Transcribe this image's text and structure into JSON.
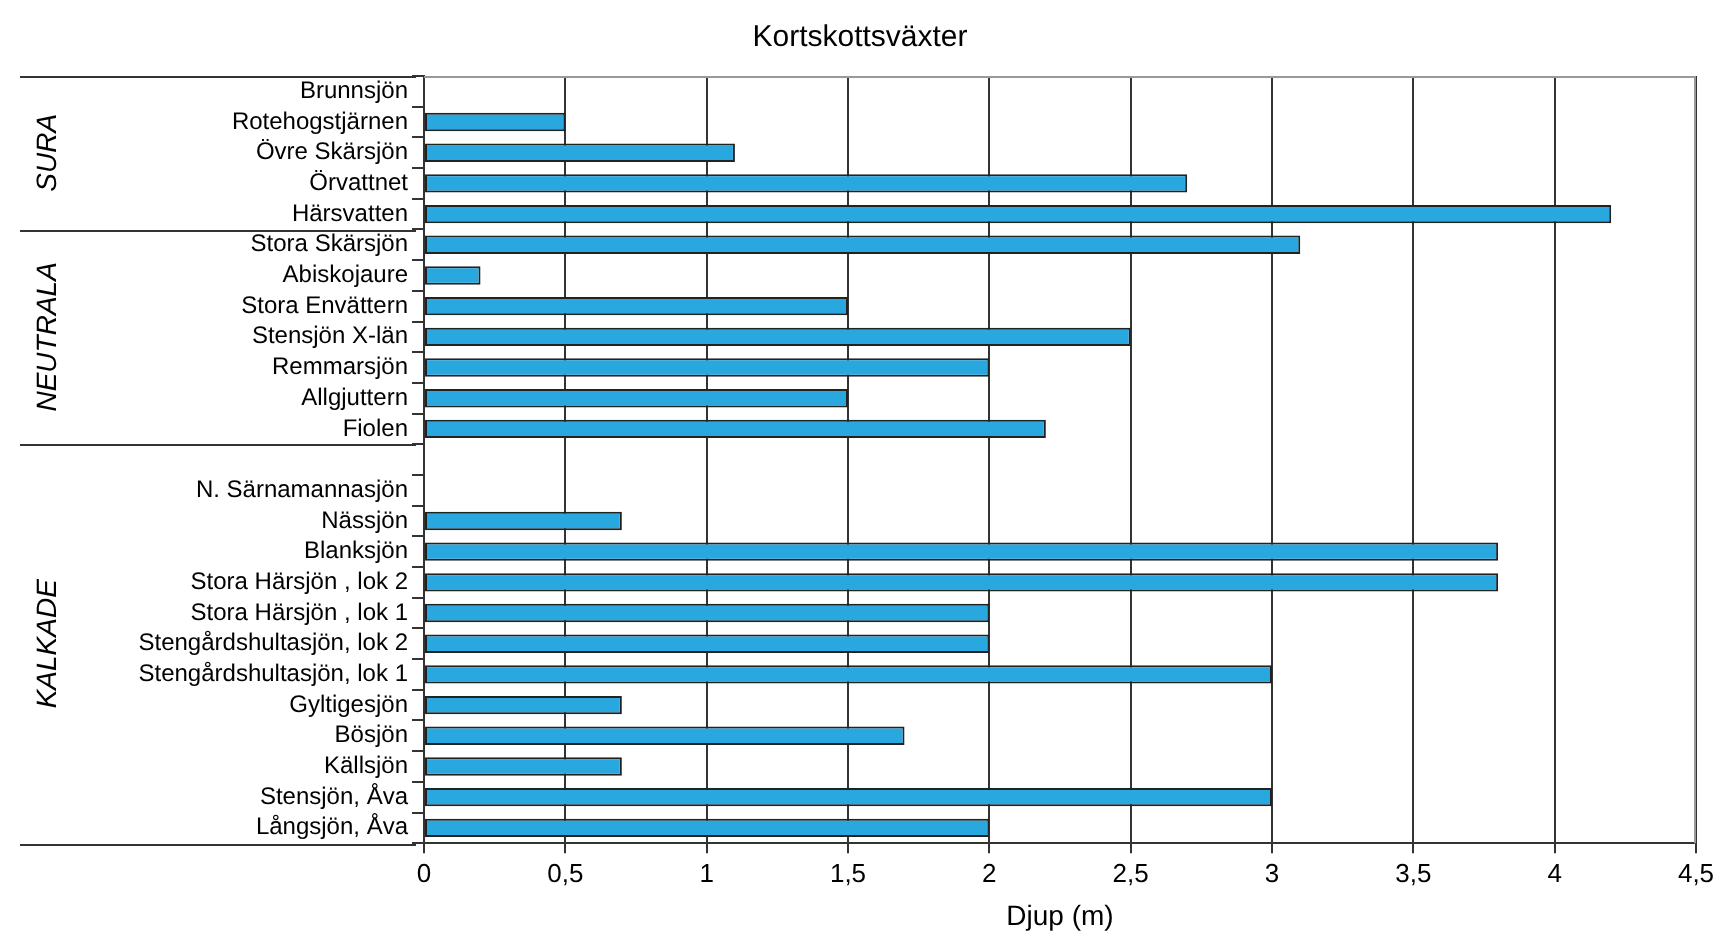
{
  "chart_data": {
    "type": "bar",
    "orientation": "horizontal",
    "title": "Kortskottsväxter",
    "xlabel": "Djup (m)",
    "categories": [
      "Brunnsjön",
      "Rotehogstjärnen",
      "Övre Skärsjön",
      "Örvattnet",
      "Härsvatten",
      "Stora Skärsjön",
      "Abiskojaure",
      "Stora Envättern",
      "Stensjön X-län",
      "Remmarsjön",
      "Allgjuttern",
      "Fiolen",
      null,
      "N. Särnamannasjön",
      "Nässjön",
      "Blanksjön",
      "Stora Härsjön , lok 2",
      "Stora Härsjön , lok 1",
      "Stengårdshultasjön, lok 2",
      "Stengårdshultasjön, lok 1",
      "Gyltigesjön",
      "Bösjön",
      "Källsjön",
      "Stensjön, Åva",
      "Långsjön, Åva"
    ],
    "values": [
      null,
      0.5,
      1.1,
      2.7,
      4.2,
      3.1,
      0.2,
      1.5,
      2.5,
      2.0,
      1.5,
      2.2,
      null,
      null,
      0.7,
      3.8,
      3.8,
      2.0,
      2.0,
      3.0,
      0.7,
      1.7,
      0.7,
      3.0,
      2.0
    ],
    "color": "#29a8e0",
    "xlim": [
      0,
      4.5
    ],
    "xticks": [
      0,
      {
        "value": 0.5,
        "label": "0,5"
      },
      1,
      {
        "value": 1.5,
        "label": "1,5"
      },
      2,
      {
        "value": 2.5,
        "label": "2,5"
      },
      3,
      {
        "value": 3.5,
        "label": "3,5"
      },
      4,
      {
        "value": 4.5,
        "label": "4,5"
      }
    ],
    "grid": "x",
    "legend": false,
    "annotations": [
      "SURA",
      "NEUTRALA",
      "KALKADE"
    ]
  }
}
